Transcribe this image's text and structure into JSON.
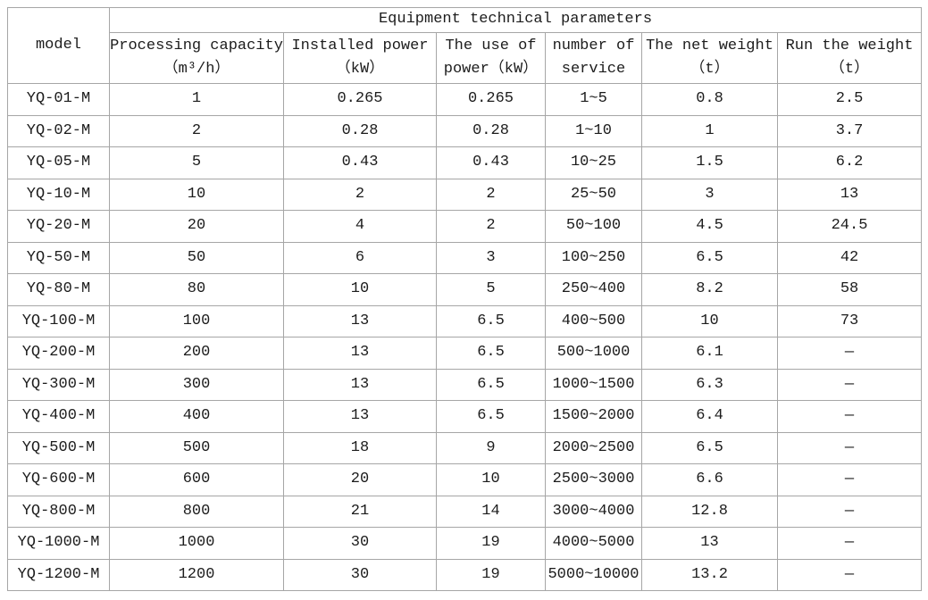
{
  "table": {
    "title": "Equipment technical parameters",
    "model_label": "model",
    "column_headers": [
      "Processing capacity\n（m³/h）",
      "Installed power\n（kW）",
      "The use of\npower（kW）",
      "number of\nservice",
      "The net weight\n（t）",
      "Run the weight\n（t）"
    ]
  },
  "chart_data": {
    "type": "table",
    "title": "Equipment technical parameters",
    "columns": [
      "model",
      "Processing capacity (m³/h)",
      "Installed power (kW)",
      "The use of power (kW)",
      "number of service",
      "The net weight (t)",
      "Run the weight (t)"
    ],
    "rows": [
      [
        "YQ-01-M",
        "1",
        "0.265",
        "0.265",
        "1~5",
        "0.8",
        "2.5"
      ],
      [
        "YQ-02-M",
        "2",
        "0.28",
        "0.28",
        "1~10",
        "1",
        "3.7"
      ],
      [
        "YQ-05-M",
        "5",
        "0.43",
        "0.43",
        "10~25",
        "1.5",
        "6.2"
      ],
      [
        "YQ-10-M",
        "10",
        "2",
        "2",
        "25~50",
        "3",
        "13"
      ],
      [
        "YQ-20-M",
        "20",
        "4",
        "2",
        "50~100",
        "4.5",
        "24.5"
      ],
      [
        "YQ-50-M",
        "50",
        "6",
        "3",
        "100~250",
        "6.5",
        "42"
      ],
      [
        "YQ-80-M",
        "80",
        "10",
        "5",
        "250~400",
        "8.2",
        "58"
      ],
      [
        "YQ-100-M",
        "100",
        "13",
        "6.5",
        "400~500",
        "10",
        "73"
      ],
      [
        "YQ-200-M",
        "200",
        "13",
        "6.5",
        "500~1000",
        "6.1",
        "—"
      ],
      [
        "YQ-300-M",
        "300",
        "13",
        "6.5",
        "1000~1500",
        "6.3",
        "—"
      ],
      [
        "YQ-400-M",
        "400",
        "13",
        "6.5",
        "1500~2000",
        "6.4",
        "—"
      ],
      [
        "YQ-500-M",
        "500",
        "18",
        "9",
        "2000~2500",
        "6.5",
        "—"
      ],
      [
        "YQ-600-M",
        "600",
        "20",
        "10",
        "2500~3000",
        "6.6",
        "—"
      ],
      [
        "YQ-800-M",
        "800",
        "21",
        "14",
        "3000~4000",
        "12.8",
        "—"
      ],
      [
        "YQ-1000-M",
        "1000",
        "30",
        "19",
        "4000~5000",
        "13",
        "—"
      ],
      [
        "YQ-1200-M",
        "1200",
        "30",
        "19",
        "5000~10000",
        "13.2",
        "—"
      ]
    ]
  },
  "colors": {
    "border": "#a6a6a6",
    "text": "#1c1c1c",
    "background": "#ffffff"
  }
}
